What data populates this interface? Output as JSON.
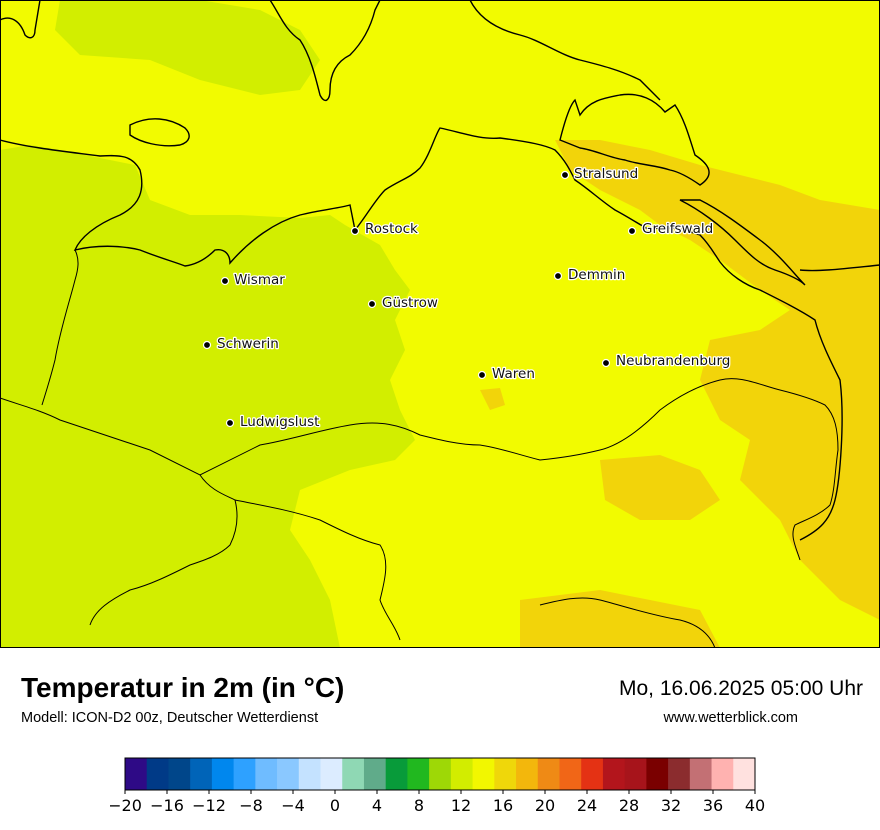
{
  "map": {
    "title": "Temperatur in 2m (in °C)",
    "model": "Modell: ICON-D2 00z, Deutscher Wetterdienst",
    "datetime": "Mo, 16.06.2025 05:00 Uhr",
    "website": "www.wetterblick.com",
    "cities": [
      {
        "name": "Stralsund",
        "id": "stralsund"
      },
      {
        "name": "Rostock",
        "id": "rostock"
      },
      {
        "name": "Greifswald",
        "id": "greifswald"
      },
      {
        "name": "Wismar",
        "id": "wismar"
      },
      {
        "name": "Demmin",
        "id": "demmin"
      },
      {
        "name": "Güstrow",
        "id": "guestrow"
      },
      {
        "name": "Schwerin",
        "id": "schwerin"
      },
      {
        "name": "Waren",
        "id": "waren"
      },
      {
        "name": "Neubrandenburg",
        "id": "neubrandenburg"
      },
      {
        "name": "Ludwigslust",
        "id": "ludwigslust"
      }
    ]
  },
  "legend": {
    "colors": [
      "#2e0a86",
      "#003a87",
      "#00468a",
      "#0064b8",
      "#0087ee",
      "#2ea1ff",
      "#6fbcff",
      "#8ac8ff",
      "#c4e2ff",
      "#dcecff",
      "#8fd8b4",
      "#60ab8a",
      "#089b3a",
      "#21b81f",
      "#9ed806",
      "#d2ed00",
      "#f2f700",
      "#efd70a",
      "#f3b70c",
      "#ef8a15",
      "#f16617",
      "#e43214",
      "#b3151c",
      "#a7141b",
      "#7a0000",
      "#8b2c2e",
      "#c37074",
      "#ffb2b0",
      "#ffe1df"
    ],
    "ticks": [
      "−20",
      "−16",
      "−12",
      "−8",
      "−4",
      "0",
      "4",
      "8",
      "12",
      "16",
      "20",
      "24",
      "28",
      "32",
      "36",
      "40"
    ]
  }
}
